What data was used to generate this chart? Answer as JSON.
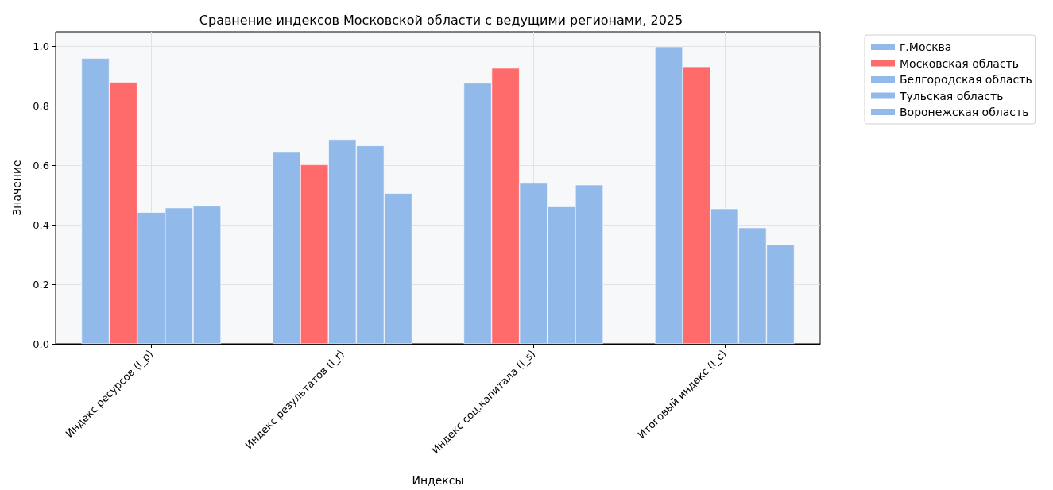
{
  "chart_data": {
    "type": "bar",
    "title": "Сравнение индексов Московской области с ведущими регионами, 2025",
    "xlabel": "Индексы",
    "ylabel": "Значение",
    "categories": [
      "Индекс ресурсов (I_p)",
      "Индекс результатов (I_r)",
      "Индекс соц.капитала (I_s)",
      "Итоговый индекс (I_c)"
    ],
    "series": [
      {
        "name": "г.Москва",
        "color": "#91b9ea",
        "values": [
          0.961,
          0.645,
          0.878,
          1.0
        ]
      },
      {
        "name": "Московская область",
        "color": "#ff6b6b",
        "values": [
          0.881,
          0.603,
          0.928,
          0.933
        ]
      },
      {
        "name": "Белгородская область",
        "color": "#91b9ea",
        "values": [
          0.443,
          0.688,
          0.541,
          0.455
        ]
      },
      {
        "name": "Тульская область",
        "color": "#91b9ea",
        "values": [
          0.458,
          0.667,
          0.462,
          0.391
        ]
      },
      {
        "name": "Воронежская область",
        "color": "#91b9ea",
        "values": [
          0.464,
          0.507,
          0.535,
          0.335
        ]
      }
    ],
    "ylim": [
      0,
      1.05
    ],
    "yticks": [
      {
        "value": 0,
        "label": "0.0"
      },
      {
        "value": 0.2,
        "label": "0.2"
      },
      {
        "value": 0.4,
        "label": "0.4"
      },
      {
        "value": 0.6,
        "label": "0.6"
      },
      {
        "value": 0.8,
        "label": "0.8"
      },
      {
        "value": 1,
        "label": "1.0"
      }
    ],
    "grid": true,
    "legend": "top right"
  }
}
